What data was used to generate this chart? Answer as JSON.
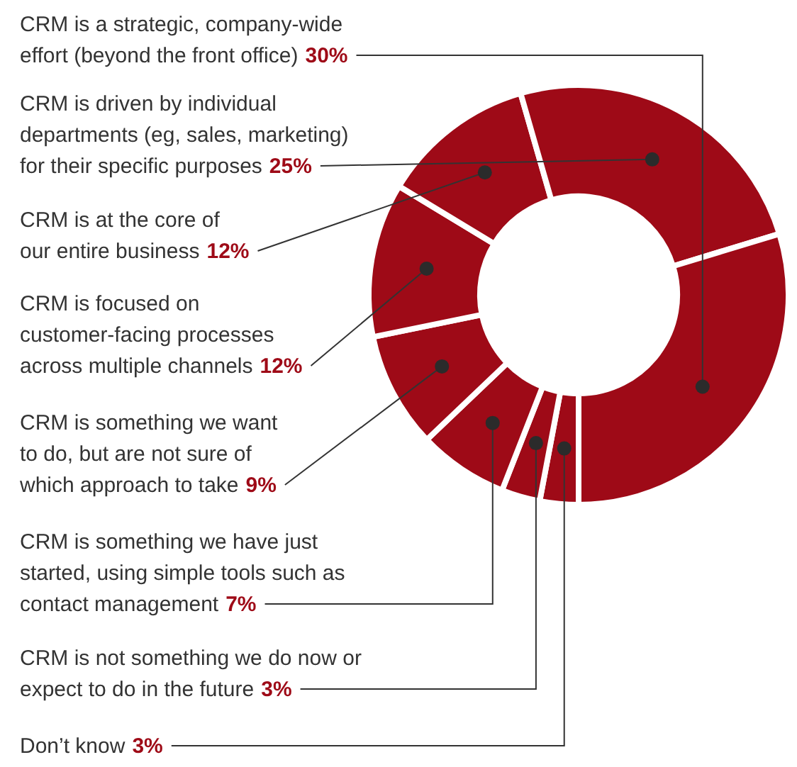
{
  "chart_data": {
    "type": "donut",
    "categories": [
      "Don’t know",
      "CRM is not something we do now or expect to do in the future",
      "CRM is something we have just started, using simple tools such as contact management",
      "CRM is something we want to do, but are not sure of which approach to take",
      "CRM is focused on customer-facing processes across multiple channels",
      "CRM is at the core of our entire business",
      "CRM is driven by individual departments (eg, sales, marketing) for their specific purposes",
      "CRM is a strategic, company-wide effort (beyond the front office)"
    ],
    "values": [
      3,
      3,
      7,
      9,
      12,
      12,
      25,
      30
    ],
    "value_labels": [
      "3%",
      "3%",
      "7%",
      "9%",
      "12%",
      "12%",
      "25%",
      "30%"
    ],
    "colors": [
      "#9e0a17",
      "#9e0a17",
      "#9e0a17",
      "#9e0a17",
      "#9e0a17",
      "#9e0a17",
      "#9e0a17",
      "#9e0a17"
    ],
    "legend": false
  }
}
